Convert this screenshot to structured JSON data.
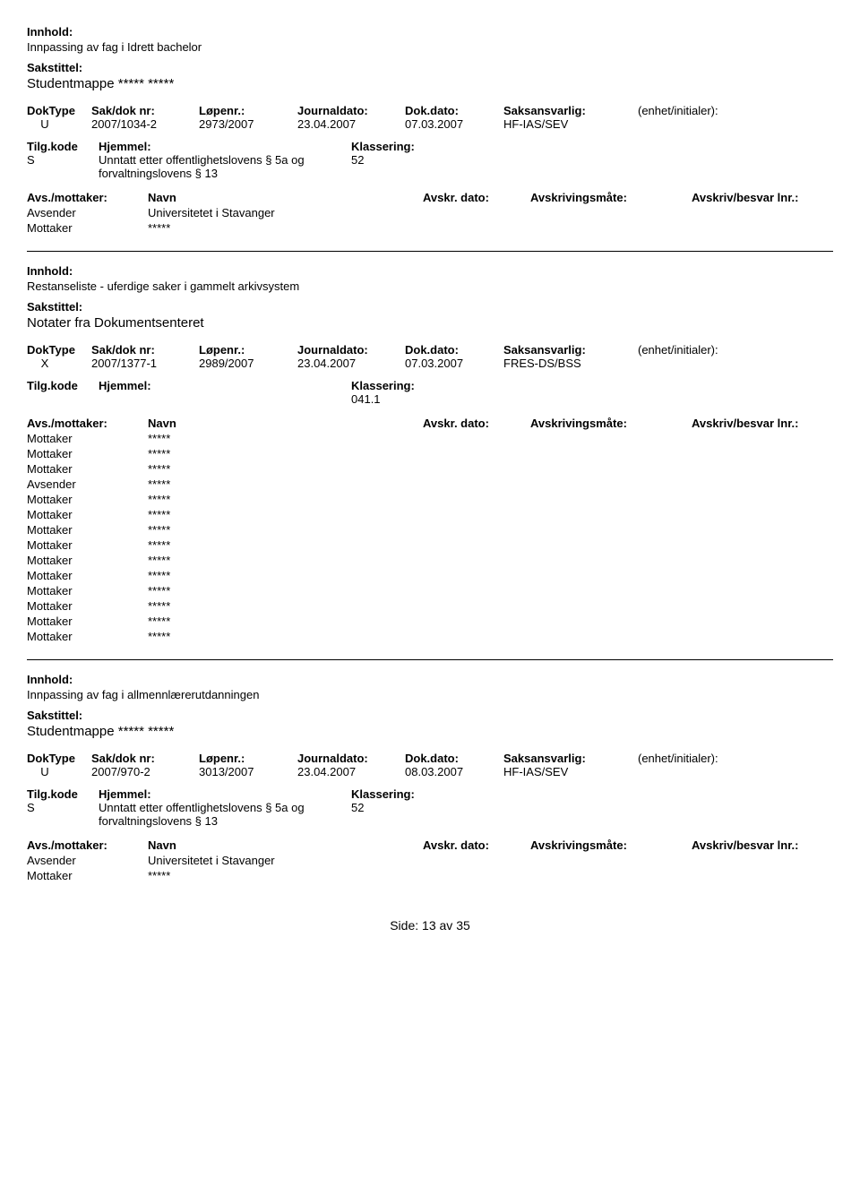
{
  "labels": {
    "innhold": "Innhold:",
    "sakstittel": "Sakstittel:",
    "doktype": "DokType",
    "sakdoknr": "Sak/dok nr:",
    "lopenr": "Løpenr.:",
    "journaldato": "Journaldato:",
    "dokdato": "Dok.dato:",
    "saksansvarlig": "Saksansvarlig:",
    "enhet": "(enhet/initialer):",
    "tilgkode": "Tilg.kode",
    "hjemmel": "Hjemmel:",
    "klassering": "Klassering:",
    "avsmottaker": "Avs./mottaker:",
    "navn": "Navn",
    "avskrdato": "Avskr. dato:",
    "avskrivmaate": "Avskrivingsmåte:",
    "avskrivlnr": "Avskriv/besvar lnr.:",
    "avsender": "Avsender",
    "mottaker": "Mottaker"
  },
  "entries": [
    {
      "innhold": "Innpassing av fag i Idrett bachelor",
      "sakstittel": "Studentmappe ***** *****",
      "doktype": "U",
      "sakdoknr": "2007/1034-2",
      "lopenr": "2973/2007",
      "journaldato": "23.04.2007",
      "dokdato": "07.03.2007",
      "saksansvarlig": "HF-IAS/SEV",
      "tilgkode": "S",
      "hjemmel": "Unntatt etter offentlighetslovens § 5a og forvaltningslovens § 13",
      "klassering": "52",
      "parties": [
        {
          "role": "Avsender",
          "name": "Universitetet i Stavanger"
        },
        {
          "role": "Mottaker",
          "name": "*****"
        }
      ]
    },
    {
      "innhold": "Restanseliste - uferdige saker i gammelt arkivsystem",
      "sakstittel": "Notater fra Dokumentsenteret",
      "doktype": "X",
      "sakdoknr": "2007/1377-1",
      "lopenr": "2989/2007",
      "journaldato": "23.04.2007",
      "dokdato": "07.03.2007",
      "saksansvarlig": "FRES-DS/BSS",
      "tilgkode": "",
      "hjemmel": "",
      "klassering": "041.1",
      "parties": [
        {
          "role": "Mottaker",
          "name": "*****"
        },
        {
          "role": "Mottaker",
          "name": "*****"
        },
        {
          "role": "Mottaker",
          "name": "*****"
        },
        {
          "role": "Avsender",
          "name": "*****"
        },
        {
          "role": "Mottaker",
          "name": "*****"
        },
        {
          "role": "Mottaker",
          "name": "*****"
        },
        {
          "role": "Mottaker",
          "name": "*****"
        },
        {
          "role": "Mottaker",
          "name": "*****"
        },
        {
          "role": "Mottaker",
          "name": "*****"
        },
        {
          "role": "Mottaker",
          "name": "*****"
        },
        {
          "role": "Mottaker",
          "name": "*****"
        },
        {
          "role": "Mottaker",
          "name": "*****"
        },
        {
          "role": "Mottaker",
          "name": "*****"
        },
        {
          "role": "Mottaker",
          "name": "*****"
        }
      ]
    },
    {
      "innhold": "Innpassing av fag i allmennlærerutdanningen",
      "sakstittel": "Studentmappe ***** *****",
      "doktype": "U",
      "sakdoknr": "2007/970-2",
      "lopenr": "3013/2007",
      "journaldato": "23.04.2007",
      "dokdato": "08.03.2007",
      "saksansvarlig": "HF-IAS/SEV",
      "tilgkode": "S",
      "hjemmel": "Unntatt etter offentlighetslovens § 5a og forvaltningslovens § 13",
      "klassering": "52",
      "parties": [
        {
          "role": "Avsender",
          "name": "Universitetet i Stavanger"
        },
        {
          "role": "Mottaker",
          "name": "*****"
        }
      ]
    }
  ],
  "footer": {
    "side": "Side:",
    "page": "13",
    "av": "av",
    "total": "35"
  }
}
